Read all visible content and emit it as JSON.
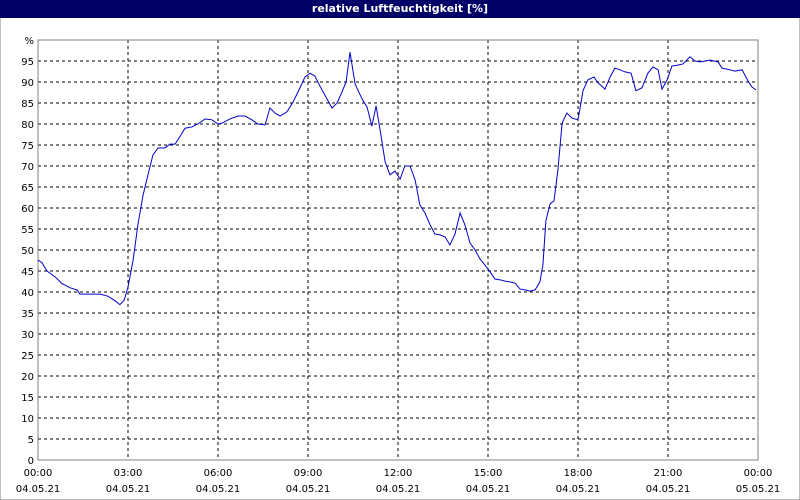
{
  "chart_data": {
    "type": "line",
    "title": "relative Luftfeuchtigkeit [%]",
    "grid": true,
    "xlim": [
      0,
      24
    ],
    "ylim": [
      0,
      100
    ],
    "xticks": [
      {
        "value": 0,
        "label": "00:00"
      },
      {
        "value": 3,
        "label": "03:00"
      },
      {
        "value": 6,
        "label": "06:00"
      },
      {
        "value": 9,
        "label": "09:00"
      },
      {
        "value": 12,
        "label": "12:00"
      },
      {
        "value": 15,
        "label": "15:00"
      },
      {
        "value": 18,
        "label": "18:00"
      },
      {
        "value": 21,
        "label": "21:00"
      },
      {
        "value": 24,
        "label": "00:00"
      }
    ],
    "xtick_dates": [
      "04.05.21",
      "04.05.21",
      "04.05.21",
      "04.05.21",
      "04.05.21",
      "04.05.21",
      "04.05.21",
      "04.05.21",
      "05.05.21"
    ],
    "yticks": [
      0,
      5,
      10,
      15,
      20,
      25,
      30,
      35,
      40,
      45,
      50,
      55,
      60,
      65,
      70,
      75,
      80,
      85,
      90,
      95,
      {
        "value": 100,
        "label": "%"
      }
    ],
    "x": [
      0,
      0.13,
      0.3,
      0.57,
      0.8,
      1.07,
      1.3,
      1.4,
      1.73,
      2.07,
      2.33,
      2.57,
      2.73,
      2.87,
      3,
      3.17,
      3.33,
      3.5,
      3.67,
      3.83,
      4,
      4.23,
      4.4,
      4.57,
      4.73,
      4.9,
      5.13,
      5.33,
      5.57,
      5.8,
      6,
      6.13,
      6.4,
      6.67,
      6.9,
      7.13,
      7.33,
      7.57,
      7.73,
      7.9,
      8.07,
      8.3,
      8.5,
      8.73,
      8.9,
      9.07,
      9.23,
      9.4,
      9.63,
      9.8,
      9.97,
      10.13,
      10.27,
      10.4,
      10.57,
      10.8,
      10.97,
      11.13,
      11.27,
      11.43,
      11.57,
      11.73,
      11.9,
      12.07,
      12.23,
      12.4,
      12.57,
      12.73,
      12.9,
      13.07,
      13.23,
      13.4,
      13.57,
      13.73,
      13.9,
      14.07,
      14.23,
      14.4,
      14.57,
      14.73,
      14.9,
      15.07,
      15.23,
      15.4,
      15.57,
      15.73,
      15.9,
      16.07,
      16.23,
      16.4,
      16.57,
      16.73,
      16.83,
      16.93,
      17.07,
      17.2,
      17.33,
      17.47,
      17.63,
      17.8,
      18,
      18.17,
      18.33,
      18.53,
      18.67,
      18.9,
      19.07,
      19.23,
      19.4,
      19.57,
      19.77,
      19.93,
      20.13,
      20.33,
      20.5,
      20.67,
      20.8,
      20.97,
      21.13,
      21.3,
      21.5,
      21.73,
      21.9,
      22.07,
      22.4,
      22.67,
      22.8,
      23.07,
      23.23,
      23.47,
      23.67,
      23.8,
      23.93
    ],
    "series": [
      {
        "name": "relative Luftfeuchtigkeit",
        "color": "#0000cc",
        "values": [
          47.6,
          47,
          45,
          43.6,
          42,
          41,
          40.5,
          39.5,
          39.5,
          39.5,
          39,
          37.9,
          37,
          38,
          41.2,
          47.6,
          56,
          63,
          68,
          72.6,
          74.3,
          74.3,
          75.2,
          75.2,
          77,
          79,
          79.3,
          80,
          81.2,
          81,
          80,
          80.2,
          81.2,
          81.9,
          81.9,
          81,
          80,
          79.8,
          83.8,
          82.6,
          81.9,
          82.9,
          85.2,
          88.6,
          91.2,
          92.1,
          91.4,
          89,
          86,
          83.8,
          85,
          87.6,
          90,
          97.1,
          89.5,
          86,
          84,
          79.5,
          84.3,
          77.4,
          71,
          67.9,
          68.8,
          66.9,
          70,
          70,
          66.7,
          60.7,
          58.8,
          56,
          53.8,
          53.6,
          53.1,
          51.2,
          53.8,
          58.8,
          56,
          51.7,
          50,
          47.9,
          46.4,
          44.8,
          43.1,
          42.9,
          42.6,
          42.4,
          42.1,
          40.7,
          40.5,
          40.2,
          40.5,
          42.4,
          46.4,
          57,
          61,
          61.7,
          69,
          80.2,
          82.6,
          81.4,
          81,
          88,
          90.5,
          91.2,
          89.8,
          88.3,
          91.2,
          93.3,
          92.9,
          92.4,
          92.1,
          87.9,
          88.6,
          92.1,
          93.6,
          92.9,
          88.3,
          90.5,
          93.8,
          94,
          94.3,
          96,
          95,
          94.8,
          95.2,
          94.8,
          93.3,
          92.9,
          92.6,
          92.9,
          90.2,
          88.8,
          88.1
        ]
      }
    ]
  }
}
